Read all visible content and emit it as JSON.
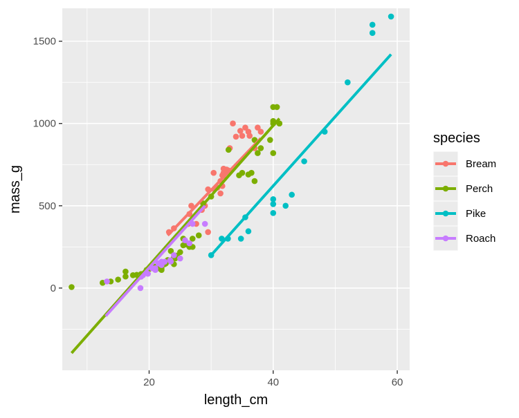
{
  "chart_data": {
    "type": "scatter",
    "title": "",
    "xlabel": "length_cm",
    "ylabel": "mass_g",
    "xlim": [
      6,
      62
    ],
    "ylim": [
      -500,
      1700
    ],
    "xticks": [
      20,
      40,
      60
    ],
    "yticks": [
      0,
      500,
      1000,
      1500
    ],
    "grid": true,
    "legend": {
      "title": "species",
      "position": "right"
    },
    "series": [
      {
        "name": "Bream",
        "color": "#F8766D",
        "points": [
          [
            23.2,
            340
          ],
          [
            24,
            363
          ],
          [
            26.3,
            390
          ],
          [
            26.5,
            450
          ],
          [
            26.8,
            500
          ],
          [
            27.6,
            390
          ],
          [
            28.5,
            475
          ],
          [
            29,
            500
          ],
          [
            29.5,
            340
          ],
          [
            29.5,
            600
          ],
          [
            30.4,
            700
          ],
          [
            30.5,
            600
          ],
          [
            31,
            610
          ],
          [
            31.5,
            650
          ],
          [
            31.5,
            575
          ],
          [
            31.8,
            685
          ],
          [
            31.8,
            620
          ],
          [
            31.9,
            680
          ],
          [
            32,
            700
          ],
          [
            32,
            725
          ],
          [
            32.5,
            720
          ],
          [
            32.8,
            714
          ],
          [
            33,
            850
          ],
          [
            33.5,
            1000
          ],
          [
            34,
            920
          ],
          [
            34.7,
            955
          ],
          [
            35,
            925
          ],
          [
            35.5,
            975
          ],
          [
            36,
            950
          ],
          [
            36.2,
            925
          ],
          [
            37,
            850
          ],
          [
            37.5,
            975
          ],
          [
            38,
            950
          ]
        ],
        "fit": [
          [
            23,
            320
          ],
          [
            38,
            910
          ]
        ]
      },
      {
        "name": "Perch",
        "color": "#7CAE00",
        "points": [
          [
            7.5,
            5.9
          ],
          [
            12.5,
            32
          ],
          [
            13.8,
            40
          ],
          [
            15,
            51.5
          ],
          [
            16.2,
            70
          ],
          [
            16.2,
            100
          ],
          [
            17.4,
            78
          ],
          [
            18,
            80
          ],
          [
            18.7,
            85
          ],
          [
            19,
            85
          ],
          [
            19.6,
            110
          ],
          [
            20,
            115
          ],
          [
            21,
            125
          ],
          [
            21,
            130
          ],
          [
            21.5,
            120
          ],
          [
            22,
            120
          ],
          [
            22,
            130
          ],
          [
            22,
            135
          ],
          [
            22,
            110
          ],
          [
            22,
            130
          ],
          [
            22.5,
            150
          ],
          [
            22.5,
            145
          ],
          [
            22.7,
            150
          ],
          [
            23,
            170
          ],
          [
            23.5,
            225
          ],
          [
            24,
            145
          ],
          [
            24,
            188
          ],
          [
            24.2,
            180
          ],
          [
            24.5,
            197
          ],
          [
            25,
            218
          ],
          [
            25.5,
            300
          ],
          [
            25.5,
            260
          ],
          [
            26,
            265
          ],
          [
            26.5,
            250
          ],
          [
            27,
            250
          ],
          [
            27,
            300
          ],
          [
            28,
            320
          ],
          [
            28.7,
            514
          ],
          [
            30,
            556
          ],
          [
            32.8,
            840
          ],
          [
            34.5,
            685
          ],
          [
            35,
            700
          ],
          [
            36.5,
            700
          ],
          [
            36,
            690
          ],
          [
            37,
            900
          ],
          [
            37,
            650
          ],
          [
            37.5,
            820
          ],
          [
            38,
            850
          ],
          [
            39.5,
            900
          ],
          [
            40,
            1015
          ],
          [
            40,
            820
          ],
          [
            40,
            1100
          ],
          [
            40,
            1000
          ],
          [
            40.6,
            1100
          ],
          [
            41,
            1000
          ],
          [
            41,
            1000
          ]
        ],
        "fit": [
          [
            7.5,
            -395
          ],
          [
            41,
            1030
          ]
        ]
      },
      {
        "name": "Pike",
        "color": "#00BFC4",
        "points": [
          [
            30,
            200
          ],
          [
            31.7,
            300
          ],
          [
            32.7,
            300
          ],
          [
            34.8,
            300
          ],
          [
            35.5,
            430
          ],
          [
            36,
            345
          ],
          [
            40,
            456
          ],
          [
            40,
            510
          ],
          [
            40,
            540
          ],
          [
            42,
            500
          ],
          [
            43,
            567
          ],
          [
            45,
            770
          ],
          [
            48.3,
            950
          ],
          [
            52,
            1250
          ],
          [
            56,
            1600
          ],
          [
            56,
            1550
          ],
          [
            59,
            1650
          ]
        ],
        "fit": [
          [
            30,
            200
          ],
          [
            59,
            1420
          ]
        ]
      },
      {
        "name": "Roach",
        "color": "#C77CFF",
        "points": [
          [
            13.2,
            40
          ],
          [
            18.6,
            0
          ],
          [
            18.7,
            69
          ],
          [
            19,
            78
          ],
          [
            19.8,
            87
          ],
          [
            20.5,
            120
          ],
          [
            21,
            110
          ],
          [
            21,
            120
          ],
          [
            21.5,
            150
          ],
          [
            21.8,
            145
          ],
          [
            22,
            160
          ],
          [
            22,
            140
          ],
          [
            22.5,
            160
          ],
          [
            23.4,
            169
          ],
          [
            23.5,
            161
          ],
          [
            24,
            200
          ],
          [
            25,
            180
          ],
          [
            25.8,
            290
          ],
          [
            26.5,
            272
          ],
          [
            27,
            390
          ],
          [
            29,
            390
          ]
        ],
        "fit": [
          [
            13,
            -170
          ],
          [
            29,
            500
          ]
        ]
      }
    ]
  }
}
